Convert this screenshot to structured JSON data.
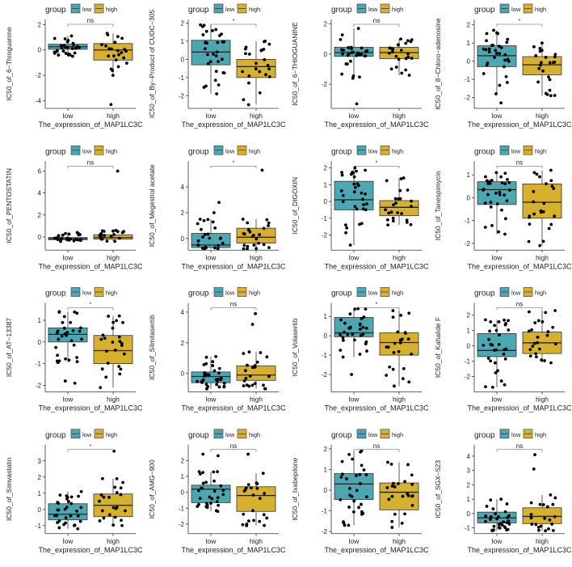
{
  "figure": {
    "group_title": "group",
    "legend_labels": [
      "low",
      "high"
    ],
    "x_axis_title": "The_expression_of_MAP1LC3C",
    "x_categories": [
      "low",
      "high"
    ]
  },
  "colors": {
    "low": "#4BA8B2",
    "high": "#D7B12E",
    "point": "#000000",
    "axis": "#333333"
  },
  "chart_data": [
    {
      "type": "box",
      "ylabel": "IC50_of_6−Thioguanine",
      "sig": "ns",
      "ylim": [
        -4.6,
        2.4
      ],
      "yticks": [
        -4,
        -2,
        0,
        2
      ],
      "groups": [
        {
          "name": "low",
          "q1": 0.05,
          "median": 0.25,
          "q3": 0.45,
          "whisker_low": -0.5,
          "whisker_high": 1.1,
          "n": 30
        },
        {
          "name": "high",
          "q1": -0.8,
          "median": 0.0,
          "q3": 0.5,
          "whisker_low": -2.0,
          "whisker_high": 1.3,
          "n": 24,
          "outliers": [
            -4.3
          ]
        }
      ]
    },
    {
      "type": "box",
      "ylabel": "IC50_of_By−Product of CUDC−305",
      "sig": "*",
      "ylim": [
        -2.7,
        2.2
      ],
      "yticks": [
        -2,
        -1,
        0,
        1,
        2
      ],
      "groups": [
        {
          "name": "low",
          "q1": -0.3,
          "median": 0.4,
          "q3": 1.05,
          "whisker_low": -1.9,
          "whisker_high": 1.9,
          "n": 32
        },
        {
          "name": "high",
          "q1": -1.0,
          "median": -0.4,
          "q3": 0.0,
          "whisker_low": -2.5,
          "whisker_high": 1.0,
          "n": 24
        }
      ]
    },
    {
      "type": "box",
      "ylabel": "IC50_of_6−THIOGUANINE",
      "sig": "ns",
      "ylim": [
        -3.6,
        2.3
      ],
      "yticks": [
        -2,
        0,
        2
      ],
      "groups": [
        {
          "name": "low",
          "q1": -0.15,
          "median": 0.1,
          "q3": 0.45,
          "whisker_low": -1.6,
          "whisker_high": 1.7,
          "n": 30,
          "outliers": [
            -3.3
          ]
        },
        {
          "name": "high",
          "q1": -0.3,
          "median": 0.1,
          "q3": 0.45,
          "whisker_low": -1.4,
          "whisker_high": 1.0,
          "n": 24
        }
      ]
    },
    {
      "type": "box",
      "ylabel": "IC50_of_8−Chloro−adenosine",
      "sig": "*",
      "ylim": [
        -2.6,
        2.3
      ],
      "yticks": [
        -2,
        -1,
        0,
        1,
        2
      ],
      "groups": [
        {
          "name": "low",
          "q1": -0.3,
          "median": 0.3,
          "q3": 0.85,
          "whisker_low": -1.8,
          "whisker_high": 1.7,
          "n": 32,
          "outliers": [
            -2.3
          ]
        },
        {
          "name": "high",
          "q1": -0.75,
          "median": -0.2,
          "q3": 0.25,
          "whisker_low": -1.9,
          "whisker_high": 1.0,
          "n": 24
        }
      ]
    },
    {
      "type": "box",
      "ylabel": "IC50_of_PENTOSTATIN",
      "sig": "ns",
      "ylim": [
        -1.2,
        6.9
      ],
      "yticks": [
        0,
        2,
        4,
        6
      ],
      "groups": [
        {
          "name": "low",
          "q1": -0.25,
          "median": -0.15,
          "q3": -0.05,
          "whisker_low": -0.4,
          "whisker_high": 0.4,
          "n": 26
        },
        {
          "name": "high",
          "q1": -0.2,
          "median": -0.05,
          "q3": 0.2,
          "whisker_low": -0.4,
          "whisker_high": 0.6,
          "n": 22,
          "outliers": [
            6.0
          ]
        }
      ]
    },
    {
      "type": "box",
      "ylabel": "IC50_of_Megestrol acetate",
      "sig": "*",
      "ylim": [
        -0.9,
        6.0
      ],
      "yticks": [
        0,
        2,
        4
      ],
      "groups": [
        {
          "name": "low",
          "q1": -0.7,
          "median": -0.5,
          "q3": 0.4,
          "whisker_low": -0.8,
          "whisker_high": 1.5,
          "n": 26,
          "outliers": [
            2.0,
            2.8
          ]
        },
        {
          "name": "high",
          "q1": -0.35,
          "median": 0.1,
          "q3": 0.8,
          "whisker_low": -0.8,
          "whisker_high": 1.5,
          "n": 24,
          "outliers": [
            5.3
          ]
        }
      ]
    },
    {
      "type": "box",
      "ylabel": "IC50_of_DIGOXIN",
      "sig": "*",
      "ylim": [
        -2.9,
        2.4
      ],
      "yticks": [
        -2,
        -1,
        0,
        1,
        2
      ],
      "groups": [
        {
          "name": "low",
          "q1": -0.5,
          "median": 0.1,
          "q3": 1.2,
          "whisker_low": -2.6,
          "whisker_high": 2.0,
          "n": 32
        },
        {
          "name": "high",
          "q1": -0.85,
          "median": -0.35,
          "q3": 0.05,
          "whisker_low": -1.4,
          "whisker_high": 1.4,
          "n": 24
        }
      ]
    },
    {
      "type": "box",
      "ylabel": "IC50_of_Tanespimycin",
      "sig": "ns",
      "ylim": [
        -2.3,
        1.6
      ],
      "yticks": [
        -2,
        -1,
        0,
        1
      ],
      "groups": [
        {
          "name": "low",
          "q1": -0.3,
          "median": 0.35,
          "q3": 0.7,
          "whisker_low": -1.6,
          "whisker_high": 1.1,
          "n": 32
        },
        {
          "name": "high",
          "q1": -0.9,
          "median": -0.2,
          "q3": 0.6,
          "whisker_low": -2.1,
          "whisker_high": 1.2,
          "n": 24
        }
      ]
    },
    {
      "type": "box",
      "ylabel": "IC50_of_AT−13387",
      "sig": "*",
      "ylim": [
        -2.3,
        1.8
      ],
      "yticks": [
        -2,
        -1,
        0,
        1
      ],
      "groups": [
        {
          "name": "low",
          "q1": 0.0,
          "median": 0.35,
          "q3": 0.65,
          "whisker_low": -0.95,
          "whisker_high": 1.4,
          "n": 32,
          "outliers": [
            -1.9,
            -1.8
          ]
        },
        {
          "name": "high",
          "q1": -1.0,
          "median": -0.4,
          "q3": 0.3,
          "whisker_low": -2.1,
          "whisker_high": 1.2,
          "n": 24
        }
      ]
    },
    {
      "type": "box",
      "ylabel": "IC50_of_Silmitasertib",
      "sig": "ns",
      "ylim": [
        -1.2,
        4.6
      ],
      "yticks": [
        0,
        2,
        4
      ],
      "groups": [
        {
          "name": "low",
          "q1": -0.6,
          "median": -0.2,
          "q3": 0.1,
          "whisker_low": -1.0,
          "whisker_high": 1.1,
          "n": 32
        },
        {
          "name": "high",
          "q1": -0.45,
          "median": -0.1,
          "q3": 0.5,
          "whisker_low": -1.0,
          "whisker_high": 1.4,
          "n": 24,
          "outliers": [
            3.2,
            3.9
          ]
        }
      ]
    },
    {
      "type": "box",
      "ylabel": "IC50_of_Volasertib",
      "sig": "*",
      "ylim": [
        -2.9,
        1.7
      ],
      "yticks": [
        -2,
        -1,
        0,
        1
      ],
      "groups": [
        {
          "name": "low",
          "q1": -0.05,
          "median": 0.15,
          "q3": 0.95,
          "whisker_low": -1.1,
          "whisker_high": 1.4,
          "n": 32,
          "outliers": [
            -2.0
          ]
        },
        {
          "name": "high",
          "q1": -1.0,
          "median": -0.35,
          "q3": 0.15,
          "whisker_low": -2.6,
          "whisker_high": 1.3,
          "n": 24
        }
      ]
    },
    {
      "type": "box",
      "ylabel": "IC50_of_Kahalide F",
      "sig": "ns",
      "ylim": [
        -3.0,
        2.8
      ],
      "yticks": [
        -2,
        -1,
        0,
        1,
        2
      ],
      "groups": [
        {
          "name": "low",
          "q1": -0.7,
          "median": -0.3,
          "q3": 0.8,
          "whisker_low": -2.7,
          "whisker_high": 1.7,
          "n": 32
        },
        {
          "name": "high",
          "q1": -0.5,
          "median": 0.2,
          "q3": 0.9,
          "whisker_low": -1.1,
          "whisker_high": 2.3,
          "n": 24
        }
      ]
    },
    {
      "type": "box",
      "ylabel": "IC50_of_Simvastatin",
      "sig": "*",
      "ylim": [
        -1.5,
        4.0
      ],
      "yticks": [
        -1,
        0,
        1,
        2,
        3
      ],
      "groups": [
        {
          "name": "low",
          "q1": -0.65,
          "median": -0.3,
          "q3": 0.35,
          "whisker_low": -1.2,
          "whisker_high": 1.1,
          "n": 32
        },
        {
          "name": "high",
          "q1": -0.45,
          "median": 0.25,
          "q3": 0.95,
          "whisker_low": -1.0,
          "whisker_high": 1.9,
          "n": 24,
          "outliers": [
            3.6
          ]
        }
      ]
    },
    {
      "type": "box",
      "ylabel": "IC50_of_AMG−900",
      "sig": "ns",
      "ylim": [
        -2.6,
        3.0
      ],
      "yticks": [
        -2,
        -1,
        0,
        1,
        2
      ],
      "groups": [
        {
          "name": "low",
          "q1": -0.65,
          "median": 0.2,
          "q3": 0.45,
          "whisker_low": -1.2,
          "whisker_high": 1.3,
          "n": 32,
          "outliers": [
            2.4,
            2.3
          ]
        },
        {
          "name": "high",
          "q1": -1.2,
          "median": -0.2,
          "q3": 0.35,
          "whisker_low": -2.1,
          "whisker_high": 1.2,
          "n": 24,
          "outliers": [
            2.4
          ]
        }
      ]
    },
    {
      "type": "box",
      "ylabel": "IC50_of_Ixabepilone",
      "sig": "ns",
      "ylim": [
        -2.1,
        2.2
      ],
      "yticks": [
        -2,
        -1,
        0,
        1,
        2
      ],
      "groups": [
        {
          "name": "low",
          "q1": -0.45,
          "median": 0.3,
          "q3": 0.8,
          "whisker_low": -1.7,
          "whisker_high": 1.9,
          "n": 32
        },
        {
          "name": "high",
          "q1": -0.95,
          "median": -0.1,
          "q3": 0.35,
          "whisker_low": -1.8,
          "whisker_high": 1.35,
          "n": 24
        }
      ]
    },
    {
      "type": "box",
      "ylabel": "IC50_of_SGX−523",
      "sig": "ns",
      "ylim": [
        -1.4,
        4.8
      ],
      "yticks": [
        -1,
        0,
        1,
        2,
        3,
        4
      ],
      "groups": [
        {
          "name": "low",
          "q1": -0.65,
          "median": -0.3,
          "q3": 0.1,
          "whisker_low": -1.2,
          "whisker_high": 1.0,
          "n": 32
        },
        {
          "name": "high",
          "q1": -0.7,
          "median": -0.2,
          "q3": 0.4,
          "whisker_low": -1.2,
          "whisker_high": 1.3,
          "n": 24,
          "outliers": [
            3.1,
            4.1
          ]
        }
      ]
    }
  ]
}
